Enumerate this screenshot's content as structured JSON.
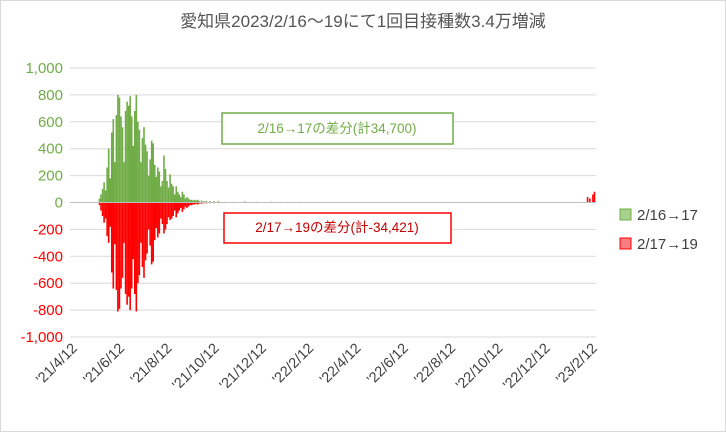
{
  "chart_data": {
    "type": "bar",
    "title": "愛知県2023/2/16〜19にて1回目接種数3.4万増減",
    "ylim": [
      -1000,
      1000
    ],
    "y_ticks": [
      {
        "value": 1000,
        "label": "1,000"
      },
      {
        "value": 800,
        "label": "800"
      },
      {
        "value": 600,
        "label": "600"
      },
      {
        "value": 400,
        "label": "400"
      },
      {
        "value": 200,
        "label": "200"
      },
      {
        "value": 0,
        "label": "0"
      },
      {
        "value": -200,
        "label": "-200"
      },
      {
        "value": -400,
        "label": "-400"
      },
      {
        "value": -600,
        "label": "-600"
      },
      {
        "value": -800,
        "label": "-800"
      },
      {
        "value": -1000,
        "label": "-1,000"
      }
    ],
    "x_ticks": [
      "'21/4/12",
      "'21/6/12",
      "'21/8/12",
      "'21/10/12",
      "'21/12/12",
      "'22/2/12",
      "'22/4/12",
      "'22/6/12",
      "'22/8/12",
      "'22/10/12",
      "'22/12/12",
      "'23/2/12"
    ],
    "grid": true,
    "legend_position": "right",
    "colors": {
      "positive": "#70AD47",
      "positive_legend_fill": "#A9D18E",
      "negative": "#FF0000",
      "negative_legend_fill": "#FF7C80",
      "axis": "#BFBFBF",
      "grid": "#D9D9D9"
    },
    "series": [
      {
        "name": "2/16→17",
        "points": [
          [
            "2021-05-10",
            30
          ],
          [
            "2021-05-12",
            60
          ],
          [
            "2021-05-14",
            100
          ],
          [
            "2021-05-16",
            150
          ],
          [
            "2021-05-18",
            90
          ],
          [
            "2021-05-20",
            260
          ],
          [
            "2021-05-22",
            400
          ],
          [
            "2021-05-24",
            180
          ],
          [
            "2021-05-26",
            520
          ],
          [
            "2021-05-28",
            620
          ],
          [
            "2021-05-30",
            300
          ],
          [
            "2021-06-01",
            650
          ],
          [
            "2021-06-03",
            800
          ],
          [
            "2021-06-05",
            780
          ],
          [
            "2021-06-07",
            640
          ],
          [
            "2021-06-09",
            560
          ],
          [
            "2021-06-11",
            300
          ],
          [
            "2021-06-13",
            680
          ],
          [
            "2021-06-15",
            750
          ],
          [
            "2021-06-17",
            720
          ],
          [
            "2021-06-19",
            790
          ],
          [
            "2021-06-21",
            640
          ],
          [
            "2021-06-23",
            420
          ],
          [
            "2021-06-25",
            680
          ],
          [
            "2021-06-27",
            800
          ],
          [
            "2021-06-29",
            600
          ],
          [
            "2021-07-01",
            540
          ],
          [
            "2021-07-03",
            300
          ],
          [
            "2021-07-05",
            480
          ],
          [
            "2021-07-07",
            560
          ],
          [
            "2021-07-09",
            430
          ],
          [
            "2021-07-11",
            380
          ],
          [
            "2021-07-13",
            200
          ],
          [
            "2021-07-15",
            320
          ],
          [
            "2021-07-17",
            460
          ],
          [
            "2021-07-19",
            440
          ],
          [
            "2021-07-21",
            280
          ],
          [
            "2021-07-23",
            190
          ],
          [
            "2021-07-25",
            260
          ],
          [
            "2021-07-27",
            230
          ],
          [
            "2021-07-29",
            120
          ],
          [
            "2021-07-31",
            160
          ],
          [
            "2021-08-02",
            350
          ],
          [
            "2021-08-04",
            250
          ],
          [
            "2021-08-06",
            160
          ],
          [
            "2021-08-08",
            110
          ],
          [
            "2021-08-10",
            210
          ],
          [
            "2021-08-12",
            140
          ],
          [
            "2021-08-14",
            120
          ],
          [
            "2021-08-16",
            60
          ],
          [
            "2021-08-18",
            120
          ],
          [
            "2021-08-20",
            80
          ],
          [
            "2021-08-22",
            60
          ],
          [
            "2021-08-24",
            40
          ],
          [
            "2021-08-26",
            80
          ],
          [
            "2021-08-28",
            60
          ],
          [
            "2021-08-30",
            30
          ],
          [
            "2021-09-01",
            40
          ],
          [
            "2021-09-03",
            30
          ],
          [
            "2021-09-05",
            20
          ],
          [
            "2021-09-07",
            20
          ],
          [
            "2021-09-09",
            15
          ],
          [
            "2021-09-11",
            20
          ],
          [
            "2021-09-13",
            15
          ],
          [
            "2021-09-15",
            20
          ],
          [
            "2021-09-17",
            10
          ],
          [
            "2021-09-20",
            15
          ],
          [
            "2021-09-23",
            10
          ],
          [
            "2021-09-26",
            10
          ],
          [
            "2021-10-01",
            10
          ],
          [
            "2021-10-06",
            10
          ],
          [
            "2021-10-12",
            10
          ],
          [
            "2021-10-20",
            5
          ],
          [
            "2021-11-01",
            5
          ],
          [
            "2021-11-15",
            8
          ],
          [
            "2021-12-01",
            5
          ],
          [
            "2021-12-20",
            6
          ],
          [
            "2022-01-10",
            5
          ],
          [
            "2022-01-28",
            5
          ],
          [
            "2022-02-12",
            4
          ],
          [
            "2022-03-01",
            4
          ],
          [
            "2022-03-20",
            3
          ],
          [
            "2022-04-12",
            3
          ],
          [
            "2022-05-12",
            2
          ],
          [
            "2022-06-12",
            2
          ],
          [
            "2022-08-01",
            2
          ],
          [
            "2022-09-20",
            2
          ],
          [
            "2022-12-10",
            4
          ],
          [
            "2023-01-05",
            2
          ],
          [
            "2023-02-01",
            3
          ]
        ]
      },
      {
        "name": "2/17→19",
        "points": [
          [
            "2021-05-10",
            -20
          ],
          [
            "2021-05-12",
            -60
          ],
          [
            "2021-05-14",
            -100
          ],
          [
            "2021-05-16",
            -150
          ],
          [
            "2021-05-18",
            -120
          ],
          [
            "2021-05-20",
            -250
          ],
          [
            "2021-05-22",
            -300
          ],
          [
            "2021-05-24",
            -180
          ],
          [
            "2021-05-26",
            -520
          ],
          [
            "2021-05-28",
            -640
          ],
          [
            "2021-05-30",
            -310
          ],
          [
            "2021-06-01",
            -650
          ],
          [
            "2021-06-03",
            -810
          ],
          [
            "2021-06-05",
            -790
          ],
          [
            "2021-06-07",
            -640
          ],
          [
            "2021-06-09",
            -560
          ],
          [
            "2021-06-11",
            -300
          ],
          [
            "2021-06-13",
            -680
          ],
          [
            "2021-06-15",
            -760
          ],
          [
            "2021-06-17",
            -700
          ],
          [
            "2021-06-19",
            -800
          ],
          [
            "2021-06-21",
            -640
          ],
          [
            "2021-06-23",
            -420
          ],
          [
            "2021-06-25",
            -680
          ],
          [
            "2021-06-27",
            -810
          ],
          [
            "2021-06-29",
            -600
          ],
          [
            "2021-07-01",
            -540
          ],
          [
            "2021-07-03",
            -300
          ],
          [
            "2021-07-05",
            -480
          ],
          [
            "2021-07-07",
            -560
          ],
          [
            "2021-07-09",
            -430
          ],
          [
            "2021-07-11",
            -380
          ],
          [
            "2021-07-13",
            -200
          ],
          [
            "2021-07-15",
            -320
          ],
          [
            "2021-07-17",
            -460
          ],
          [
            "2021-07-19",
            -440
          ],
          [
            "2021-07-21",
            -280
          ],
          [
            "2021-07-23",
            -190
          ],
          [
            "2021-07-25",
            -260
          ],
          [
            "2021-07-27",
            -230
          ],
          [
            "2021-07-29",
            -120
          ],
          [
            "2021-07-31",
            -160
          ],
          [
            "2021-08-02",
            -230
          ],
          [
            "2021-08-04",
            -200
          ],
          [
            "2021-08-06",
            -160
          ],
          [
            "2021-08-08",
            -110
          ],
          [
            "2021-08-10",
            -130
          ],
          [
            "2021-08-12",
            -120
          ],
          [
            "2021-08-14",
            -100
          ],
          [
            "2021-08-16",
            -60
          ],
          [
            "2021-08-18",
            -110
          ],
          [
            "2021-08-20",
            -80
          ],
          [
            "2021-08-22",
            -60
          ],
          [
            "2021-08-24",
            -40
          ],
          [
            "2021-08-26",
            -70
          ],
          [
            "2021-08-28",
            -50
          ],
          [
            "2021-08-30",
            -30
          ],
          [
            "2021-09-01",
            -40
          ],
          [
            "2021-09-03",
            -30
          ],
          [
            "2021-09-05",
            -20
          ],
          [
            "2021-09-07",
            -20
          ],
          [
            "2021-09-09",
            -15
          ],
          [
            "2021-09-11",
            -15
          ],
          [
            "2021-09-13",
            -10
          ],
          [
            "2021-09-15",
            -15
          ],
          [
            "2021-09-17",
            -8
          ],
          [
            "2021-09-20",
            -10
          ],
          [
            "2021-09-23",
            -6
          ],
          [
            "2021-09-26",
            -6
          ],
          [
            "2021-10-01",
            -5
          ],
          [
            "2021-10-06",
            -5
          ],
          [
            "2021-10-12",
            -4
          ],
          [
            "2023-02-05",
            40
          ],
          [
            "2023-02-08",
            30
          ],
          [
            "2023-02-12",
            60
          ],
          [
            "2023-02-14",
            80
          ]
        ]
      }
    ],
    "annotations": [
      {
        "id": "positive-note",
        "text": "2/16→17の差分(計34,700)"
      },
      {
        "id": "negative-note",
        "text": "2/17→19の差分(計-34,421)"
      }
    ]
  }
}
